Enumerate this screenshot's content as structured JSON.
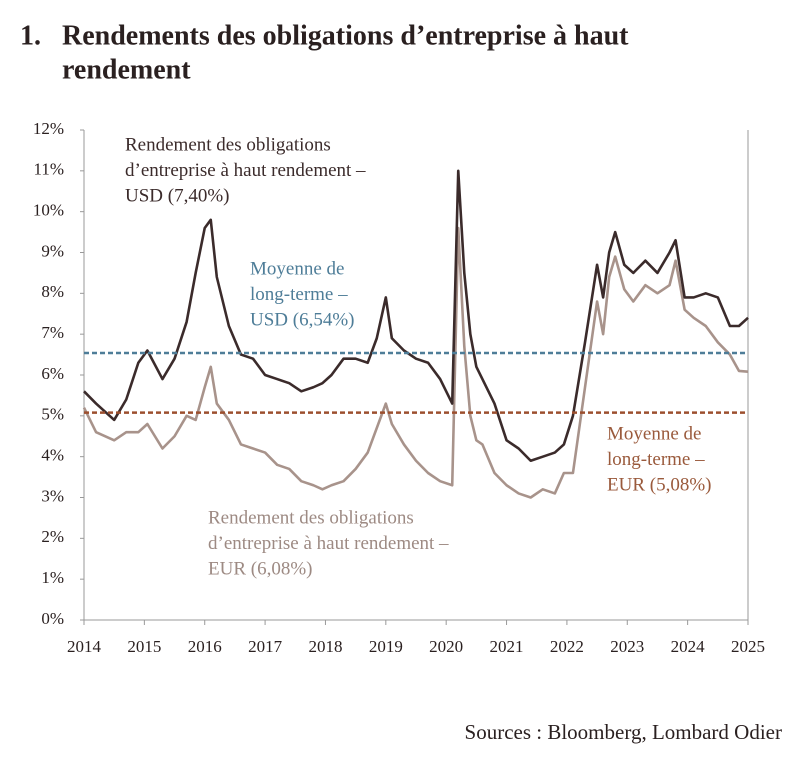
{
  "chart_data": {
    "type": "line",
    "number": "1.",
    "title": [
      "Rendements des obligations d’entreprise à haut",
      "rendement"
    ],
    "source": "Sources : Bloomberg, Lombard Odier",
    "x": [
      2014.0,
      2014.2,
      2014.5,
      2014.7,
      2014.9,
      2015.05,
      2015.3,
      2015.5,
      2015.7,
      2015.85,
      2016.0,
      2016.1,
      2016.2,
      2016.4,
      2016.6,
      2016.8,
      2017.0,
      2017.2,
      2017.4,
      2017.6,
      2017.8,
      2017.95,
      2018.1,
      2018.3,
      2018.5,
      2018.7,
      2018.85,
      2019.0,
      2019.1,
      2019.3,
      2019.5,
      2019.7,
      2019.9,
      2020.1,
      2020.2,
      2020.3,
      2020.4,
      2020.5,
      2020.6,
      2020.8,
      2021.0,
      2021.2,
      2021.4,
      2021.6,
      2021.8,
      2021.95,
      2022.1,
      2022.3,
      2022.5,
      2022.6,
      2022.7,
      2022.8,
      2022.95,
      2023.1,
      2023.3,
      2023.5,
      2023.7,
      2023.8,
      2023.95,
      2024.1,
      2024.3,
      2024.5,
      2024.7,
      2024.85,
      2025.0
    ],
    "series": [
      {
        "name": [
          "Rendement des obligations",
          "d’entreprise à haut rendement –",
          "USD (7,40%)"
        ],
        "color": "#3b2b2b",
        "values": [
          5.6,
          5.3,
          4.9,
          5.4,
          6.3,
          6.6,
          5.9,
          6.4,
          7.3,
          8.5,
          9.6,
          9.8,
          8.4,
          7.2,
          6.5,
          6.4,
          6.0,
          5.9,
          5.8,
          5.6,
          5.7,
          5.8,
          6.0,
          6.4,
          6.4,
          6.3,
          6.9,
          7.9,
          6.9,
          6.6,
          6.4,
          6.3,
          5.9,
          5.3,
          11.0,
          8.5,
          7.0,
          6.2,
          5.9,
          5.3,
          4.4,
          4.2,
          3.9,
          4.0,
          4.1,
          4.3,
          5.0,
          6.8,
          8.7,
          7.9,
          9.0,
          9.5,
          8.7,
          8.5,
          8.8,
          8.5,
          9.0,
          9.3,
          7.9,
          7.9,
          8.0,
          7.9,
          7.2,
          7.2,
          7.4
        ]
      },
      {
        "name": [
          "Rendement des obligations",
          "d’entreprise à haut rendement –",
          "EUR (6,08%)"
        ],
        "color": "#a8938b",
        "values": [
          5.2,
          4.6,
          4.4,
          4.6,
          4.6,
          4.8,
          4.2,
          4.5,
          5.0,
          4.9,
          5.7,
          6.2,
          5.3,
          4.9,
          4.3,
          4.2,
          4.1,
          3.8,
          3.7,
          3.4,
          3.3,
          3.2,
          3.3,
          3.4,
          3.7,
          4.1,
          4.7,
          5.3,
          4.8,
          4.3,
          3.9,
          3.6,
          3.4,
          3.3,
          9.6,
          6.7,
          5.0,
          4.4,
          4.3,
          3.6,
          3.3,
          3.1,
          3.0,
          3.2,
          3.1,
          3.6,
          3.6,
          5.7,
          7.8,
          7.0,
          8.4,
          8.9,
          8.1,
          7.8,
          8.2,
          8.0,
          8.2,
          8.8,
          7.6,
          7.4,
          7.2,
          6.8,
          6.5,
          6.1,
          6.08
        ]
      }
    ],
    "reference_lines": [
      {
        "value": 6.54,
        "color": "#4e7d98",
        "label": [
          "Moyenne de",
          "long-terme –",
          "USD (6,54%)"
        ]
      },
      {
        "value": 5.08,
        "color": "#9c4f2e",
        "label": [
          "Moyenne de",
          "long-terme –",
          "EUR (5,08%)"
        ]
      }
    ],
    "xlim": [
      2014,
      2025
    ],
    "xticks": [
      2014,
      2015,
      2016,
      2017,
      2018,
      2019,
      2020,
      2021,
      2022,
      2023,
      2024,
      2025
    ],
    "ylim": [
      0,
      12
    ],
    "yticks": [
      {
        "value": 0,
        "label": "0%"
      },
      {
        "value": 1,
        "label": "1%"
      },
      {
        "value": 2,
        "label": "2%"
      },
      {
        "value": 3,
        "label": "3%"
      },
      {
        "value": 4,
        "label": "4%"
      },
      {
        "value": 5,
        "label": "5%"
      },
      {
        "value": 6,
        "label": "6%"
      },
      {
        "value": 7,
        "label": "7%"
      },
      {
        "value": 8,
        "label": "8%"
      },
      {
        "value": 9,
        "label": "9%"
      },
      {
        "value": 10,
        "label": "10%"
      },
      {
        "value": 11,
        "label": "11%"
      },
      {
        "value": 12,
        "label": "12%"
      }
    ]
  }
}
